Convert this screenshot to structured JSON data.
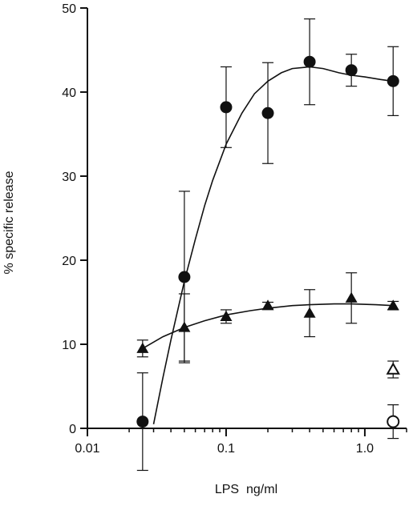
{
  "chart_data": {
    "type": "scatter",
    "xlabel": "LPS  ng/ml",
    "ylabel": "% specific release",
    "xscale": "log",
    "xlim": [
      0.01,
      2.0
    ],
    "ylim": [
      0,
      50
    ],
    "x_ticks": [
      0.01,
      0.1,
      1.0
    ],
    "x_tick_labels": [
      "0.01",
      "0.1",
      "1.0"
    ],
    "y_ticks": [
      0,
      10,
      20,
      30,
      40,
      50
    ],
    "y_tick_labels": [
      "0",
      "10",
      "20",
      "30",
      "40",
      "50"
    ],
    "grid": false,
    "series": [
      {
        "marker": "filled-circle",
        "x": [
          0.025,
          0.05,
          0.1,
          0.2,
          0.4,
          0.8,
          1.6
        ],
        "y": [
          0.8,
          18.0,
          38.2,
          37.5,
          43.6,
          42.6,
          41.3
        ],
        "err": [
          5.8,
          10.2,
          4.8,
          6.0,
          5.1,
          1.9,
          4.1
        ],
        "fit_x": [
          0.03,
          0.035,
          0.04,
          0.05,
          0.06,
          0.07,
          0.08,
          0.1,
          0.13,
          0.16,
          0.2,
          0.25,
          0.3,
          0.4,
          0.5,
          0.65,
          0.8,
          1.0,
          1.3,
          1.6
        ],
        "fit_y": [
          0.5,
          6.0,
          10.5,
          17.5,
          22.5,
          26.5,
          29.5,
          33.8,
          37.5,
          39.8,
          41.3,
          42.3,
          42.8,
          43.0,
          42.8,
          42.3,
          42.0,
          41.8,
          41.5,
          41.3
        ]
      },
      {
        "marker": "filled-triangle",
        "x": [
          0.025,
          0.05,
          0.1,
          0.2,
          0.4,
          0.8,
          1.6
        ],
        "y": [
          9.5,
          12.0,
          13.3,
          14.6,
          13.7,
          15.5,
          14.6
        ],
        "err": [
          1.0,
          4.0,
          0.8,
          0.4,
          2.8,
          3.0,
          0.5
        ],
        "fit_x": [
          0.025,
          0.035,
          0.05,
          0.07,
          0.1,
          0.15,
          0.2,
          0.3,
          0.4,
          0.6,
          0.8,
          1.2,
          1.6
        ],
        "fit_y": [
          9.5,
          10.9,
          12.0,
          12.8,
          13.5,
          14.0,
          14.3,
          14.6,
          14.7,
          14.8,
          14.8,
          14.7,
          14.6
        ]
      },
      {
        "marker": "open-triangle",
        "x": [
          1.6
        ],
        "y": [
          7.0
        ],
        "err": [
          1.0
        ]
      },
      {
        "marker": "open-circle",
        "x": [
          1.6
        ],
        "y": [
          0.8
        ],
        "err": [
          2.0
        ]
      }
    ]
  }
}
